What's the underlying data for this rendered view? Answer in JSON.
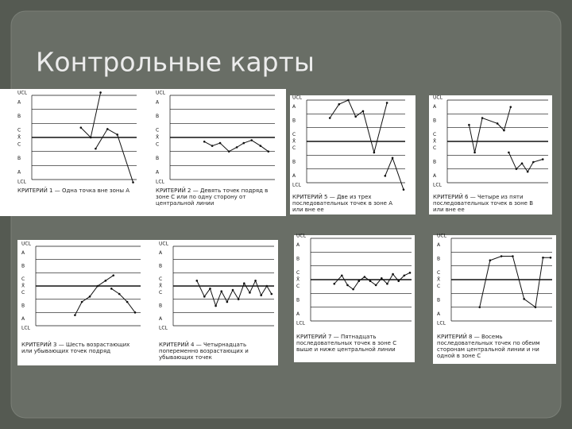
{
  "title": "Контрольные карты",
  "charts": [
    {
      "labels": [
        "UCL",
        "A",
        "B",
        "C",
        "X̄",
        "C",
        "B",
        "A",
        "LCL"
      ],
      "caption": "КРИТЕРИЙ 1 — Одна точка вне зоны А"
    },
    {
      "labels": [
        "UCL",
        "A",
        "B",
        "C",
        "X̄",
        "C",
        "B",
        "A",
        "LCL"
      ],
      "caption": "КРИТЕРИЙ 2 — Девять точек подряд в зоне С или по одну сторону от центральной линии"
    },
    {
      "labels": [
        "UCL",
        "A",
        "B",
        "C",
        "X̄",
        "C",
        "B",
        "A",
        "LCL"
      ],
      "caption": "КРИТЕРИЙ 3 — Шесть возрастающих или убывающих точек подряд"
    },
    {
      "labels": [
        "UCL",
        "A",
        "B",
        "C",
        "X̄",
        "C",
        "B",
        "A",
        "LCL"
      ],
      "caption": "КРИТЕРИЙ 4 — Четырнадцать попеременно возрастающих и убывающих точек"
    },
    {
      "labels": [
        "UCL",
        "A",
        "B",
        "C",
        "X̄",
        "C",
        "B",
        "A",
        "LCL"
      ],
      "caption": "КРИТЕРИЙ 5 — Две из трех последовательных точек в зоне А или вне ее"
    },
    {
      "labels": [
        "UCL",
        "A",
        "B",
        "C",
        "X̄",
        "C",
        "B",
        "A",
        "LCL"
      ],
      "caption": "КРИТЕРИЙ 6 — Четыре из пяти последовательных точек в зоне В или вне ее"
    },
    {
      "labels": [
        "UCL",
        "A",
        "B",
        "C",
        "X̄",
        "C",
        "B",
        "A",
        "LCL"
      ],
      "caption": "КРИТЕРИЙ 7 — Пятнадцать последовательных точек в зоне С выше и ниже центральной линии"
    },
    {
      "labels": [
        "UCL",
        "A",
        "B",
        "C",
        "X̄",
        "C",
        "B",
        "A",
        "LCL"
      ],
      "caption": "КРИТЕРИЙ 8 — Восемь последовательных точек по обеим сторонам центральной линии и ни одной в зоне С"
    }
  ]
}
